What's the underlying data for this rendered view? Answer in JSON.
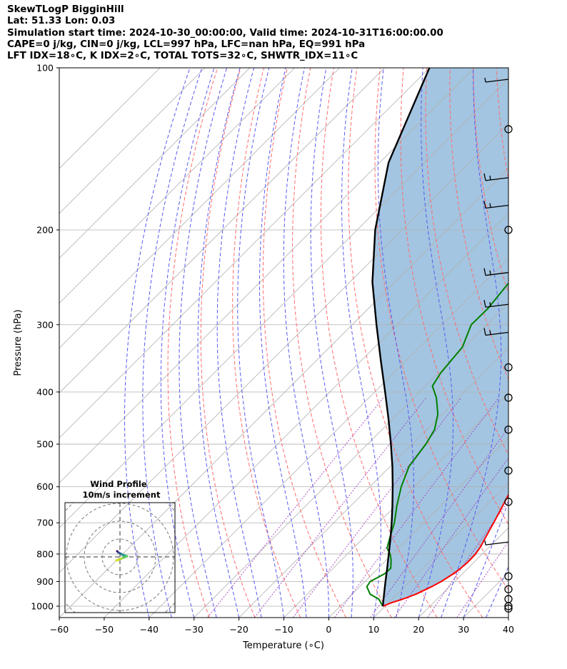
{
  "header": {
    "line1": "SkewTLogP BigginHill",
    "line2": "Lat: 51.33   Lon: 0.03",
    "line3": "Simulation start time: 2024-10-30_00:00:00, Valid time: 2024-10-31T16:00:00.00",
    "line4": "CAPE=0 j/kg, CIN=0 j/kg, LCL=997 hPa, LFC=nan hPa, EQ=991 hPa",
    "line5": "LFT IDX=18∘C, K IDX=2∘C, TOTAL TOTS=32∘C, SHWTR_IDX=11∘C"
  },
  "chart_data": {
    "type": "line",
    "title": "SkewTLogP BigginHill",
    "xlabel": "Temperature (∘C)",
    "ylabel": "Pressure (hPa)",
    "xlim": [
      -60,
      40
    ],
    "ylim": [
      1050,
      100
    ],
    "y_scale": "log",
    "x_ticks": [
      -60,
      -50,
      -40,
      -30,
      -20,
      -10,
      0,
      10,
      20,
      30,
      40
    ],
    "y_ticks": [
      100,
      200,
      300,
      400,
      500,
      600,
      700,
      800,
      900,
      1000
    ],
    "grid": true,
    "series": [
      {
        "name": "temperature",
        "color": "#ff0000",
        "pressure": [
          1000,
          985,
          970,
          950,
          920,
          900,
          870,
          850,
          830,
          800,
          775,
          750,
          700,
          650,
          600,
          550,
          500,
          450,
          400,
          370,
          350,
          330,
          300,
          270,
          250,
          230,
          210,
          200,
          190,
          180,
          170,
          160,
          150,
          140,
          130,
          120,
          110,
          100
        ],
        "values": [
          9.5,
          10.7,
          12.4,
          14.2,
          16.0,
          17.0,
          18.0,
          18.4,
          18.6,
          18.5,
          18.0,
          17.2,
          15.6,
          13.8,
          11.8,
          9.5,
          6.2,
          2.6,
          -1.8,
          -5.0,
          -7.2,
          -9.6,
          -12.8,
          -15.5,
          -17.5,
          -19.2,
          -20.8,
          -21.3,
          -21.5,
          -21.5,
          -21.7,
          -22.0,
          -22.2,
          -22.7,
          -23.2,
          -24.0,
          -25.8,
          -27.0
        ]
      },
      {
        "name": "dewpoint",
        "color": "#008000",
        "pressure": [
          1000,
          970,
          950,
          920,
          900,
          870,
          850,
          820,
          800,
          780,
          750,
          700,
          650,
          600,
          550,
          500,
          470,
          440,
          410,
          390,
          370,
          350,
          330,
          300,
          280,
          250,
          230,
          210,
          200,
          190,
          180,
          170,
          160,
          150,
          140,
          130,
          120,
          110,
          100
        ],
        "values": [
          9.5,
          7.0,
          4.0,
          1.6,
          1.2,
          2.7,
          2.8,
          1.0,
          -0.5,
          -2.5,
          -4.0,
          -6.5,
          -9.8,
          -13.0,
          -15.8,
          -17.0,
          -18.3,
          -21.0,
          -25.0,
          -28.5,
          -29.5,
          -30.0,
          -30.5,
          -33.5,
          -33.4,
          -34.5,
          -36.5,
          -36.0,
          -37.0,
          -37.5,
          -38.0,
          -38.0,
          -38.0,
          -39.0,
          -41.0,
          -43.0,
          -42.5,
          -43.0,
          -43.5
        ]
      },
      {
        "name": "parcel",
        "color": "#000000",
        "pressure": [
          1000,
          950,
          900,
          850,
          800,
          750,
          700,
          650,
          600,
          550,
          500,
          450,
          400,
          350,
          300,
          250,
          200,
          150,
          100
        ],
        "values": [
          9.5,
          7.1,
          4.6,
          2.0,
          -0.8,
          -3.8,
          -7.1,
          -10.8,
          -14.9,
          -19.5,
          -24.8,
          -30.8,
          -37.7,
          -45.6,
          -54.6,
          -65.0,
          -76.0,
          -88.0,
          -100.0
        ]
      }
    ],
    "wind_barbs": {
      "pressure": [
        105,
        130,
        160,
        180,
        200,
        240,
        275,
        310,
        360,
        410,
        470,
        560,
        640,
        760,
        880,
        930,
        970,
        1000,
        1010
      ],
      "speed_kt": [
        5,
        0,
        15,
        15,
        0,
        15,
        15,
        15,
        0,
        0,
        0,
        0,
        0,
        5,
        0,
        0,
        0,
        0,
        0
      ]
    },
    "wind_profile": {
      "title": "Wind Profile",
      "subtitle": "10m/s increment"
    }
  }
}
